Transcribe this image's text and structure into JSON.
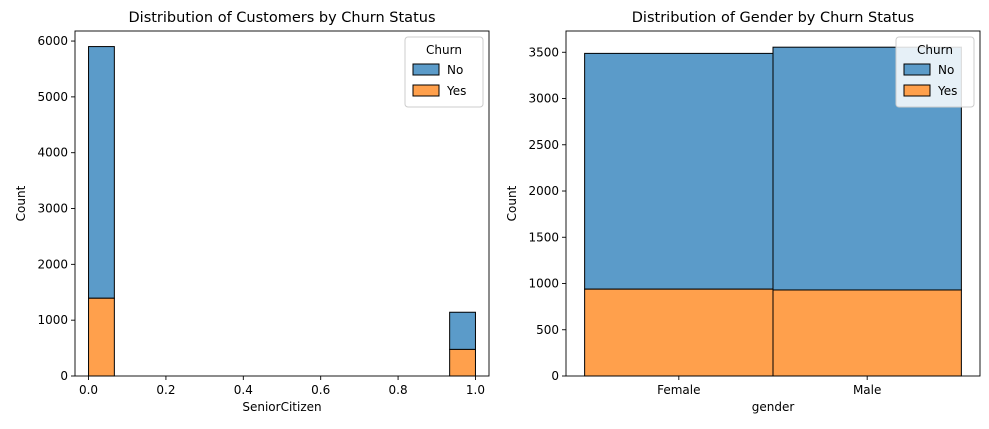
{
  "colors": {
    "no": "#5b9bc9",
    "yes": "#ffa04c",
    "edge": "#000000"
  },
  "chart_data": [
    {
      "type": "bar",
      "title": "Distribution of Customers by Churn Status",
      "xlabel": "SeniorCitizen",
      "ylabel": "Count",
      "xlim": [
        -0.035,
        1.035
      ],
      "ylim": [
        0,
        6180
      ],
      "xticks": [
        0.0,
        0.2,
        0.4,
        0.6,
        0.8,
        1.0
      ],
      "xtick_labels": [
        "0.0",
        "0.2",
        "0.4",
        "0.6",
        "0.8",
        "1.0"
      ],
      "yticks": [
        0,
        1000,
        2000,
        3000,
        4000,
        5000,
        6000
      ],
      "ytick_labels": [
        "0",
        "1000",
        "2000",
        "3000",
        "4000",
        "5000",
        "6000"
      ],
      "stacked": true,
      "bins": [
        {
          "x0": 0.0,
          "x1": 0.0667,
          "label": "0"
        },
        {
          "x0": 0.9333,
          "x1": 1.0,
          "label": "1"
        }
      ],
      "series": [
        {
          "name": "No",
          "values": [
            4508,
            666
          ]
        },
        {
          "name": "Yes",
          "values": [
            1393,
            476
          ]
        }
      ],
      "legend": {
        "title": "Churn",
        "entries": [
          "No",
          "Yes"
        ],
        "position": "upper-right"
      },
      "grid": false
    },
    {
      "type": "bar",
      "title": "Distribution of Gender by Churn Status",
      "xlabel": "gender",
      "ylabel": "Count",
      "categories": [
        "Female",
        "Male"
      ],
      "ylim": [
        0,
        3730
      ],
      "yticks": [
        0,
        500,
        1000,
        1500,
        2000,
        2500,
        3000,
        3500
      ],
      "ytick_labels": [
        "0",
        "500",
        "1000",
        "1500",
        "2000",
        "2500",
        "3000",
        "3500"
      ],
      "stacked": true,
      "series": [
        {
          "name": "No",
          "values": [
            2549,
            2625
          ]
        },
        {
          "name": "Yes",
          "values": [
            939,
            930
          ]
        }
      ],
      "legend": {
        "title": "Churn",
        "entries": [
          "No",
          "Yes"
        ],
        "position": "upper-right"
      },
      "grid": false
    }
  ]
}
